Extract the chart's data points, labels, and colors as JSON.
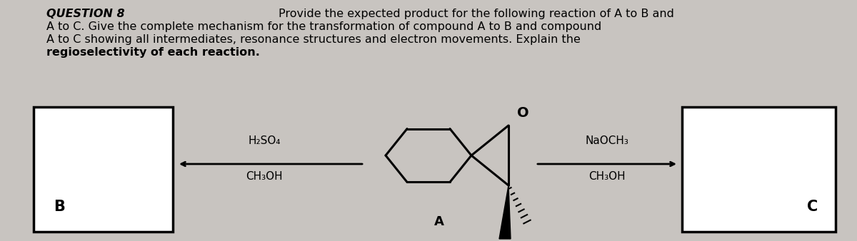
{
  "background_color": "#c8c4c0",
  "title": "QUESTION 8",
  "line_right": "Provide the expected product for the following reaction of A to B and",
  "line2": "A to C. Give the complete mechanism for the transformation of compound A to B and compound",
  "line3": "A to C showing all intermediates, resonance structures and electron movements. Explain the",
  "line4": "regioselectivity of each reaction.",
  "reagent_left_top": "H₂SO₄",
  "reagent_left_bot": "CH₃OH",
  "reagent_right_top": "NaOCH₃",
  "reagent_right_bot": "CH₃OH",
  "label_a": "A",
  "label_b": "B",
  "label_c": "C"
}
